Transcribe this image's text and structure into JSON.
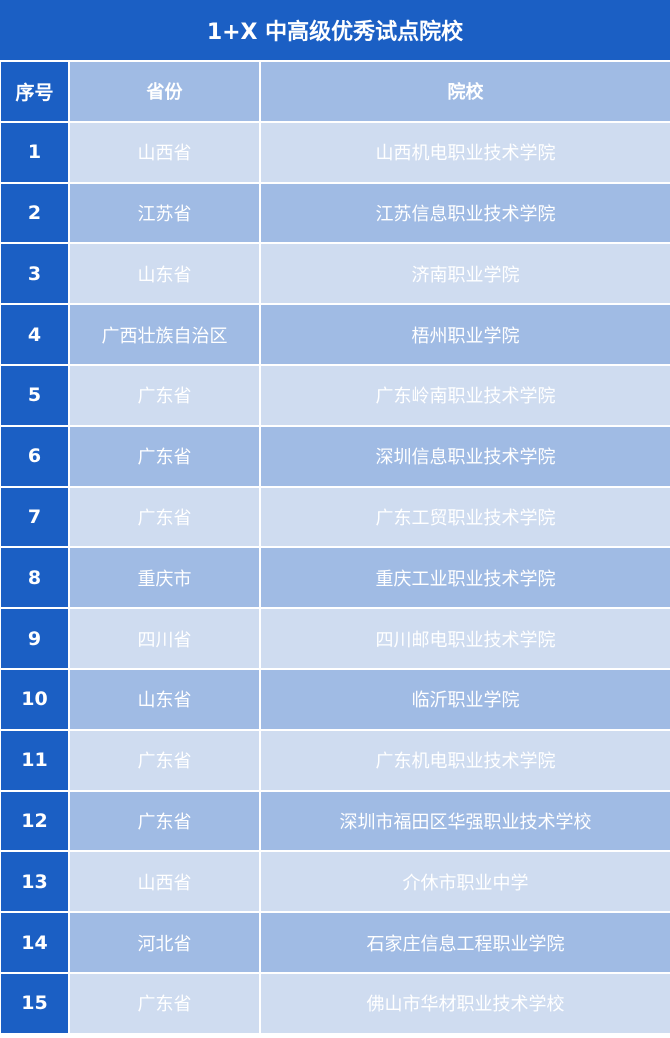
{
  "title": "1+X 中高级优秀试点院校",
  "headers": [
    "序号",
    "省份",
    "院校"
  ],
  "colors": {
    "primary": "#1b5fc4",
    "row_light": "#cfdcf0",
    "row_dark": "#a0bbe4"
  },
  "rows": [
    [
      "1",
      "山西省",
      "山西机电职业技术学院"
    ],
    [
      "2",
      "江苏省",
      "江苏信息职业技术学院"
    ],
    [
      "3",
      "山东省",
      "济南职业学院"
    ],
    [
      "4",
      "广西壮族自治区",
      "梧州职业学院"
    ],
    [
      "5",
      "广东省",
      "广东岭南职业技术学院"
    ],
    [
      "6",
      "广东省",
      "深圳信息职业技术学院"
    ],
    [
      "7",
      "广东省",
      "广东工贸职业技术学院"
    ],
    [
      "8",
      "重庆市",
      "重庆工业职业技术学院"
    ],
    [
      "9",
      "四川省",
      "四川邮电职业技术学院"
    ],
    [
      "10",
      "山东省",
      "临沂职业学院"
    ],
    [
      "11",
      "广东省",
      "广东机电职业技术学院"
    ],
    [
      "12",
      "广东省",
      "深圳市福田区华强职业技术学校"
    ],
    [
      "13",
      "山西省",
      "介休市职业中学"
    ],
    [
      "14",
      "河北省",
      "石家庄信息工程职业学院"
    ],
    [
      "15",
      "广东省",
      "佛山市华材职业技术学校"
    ]
  ]
}
